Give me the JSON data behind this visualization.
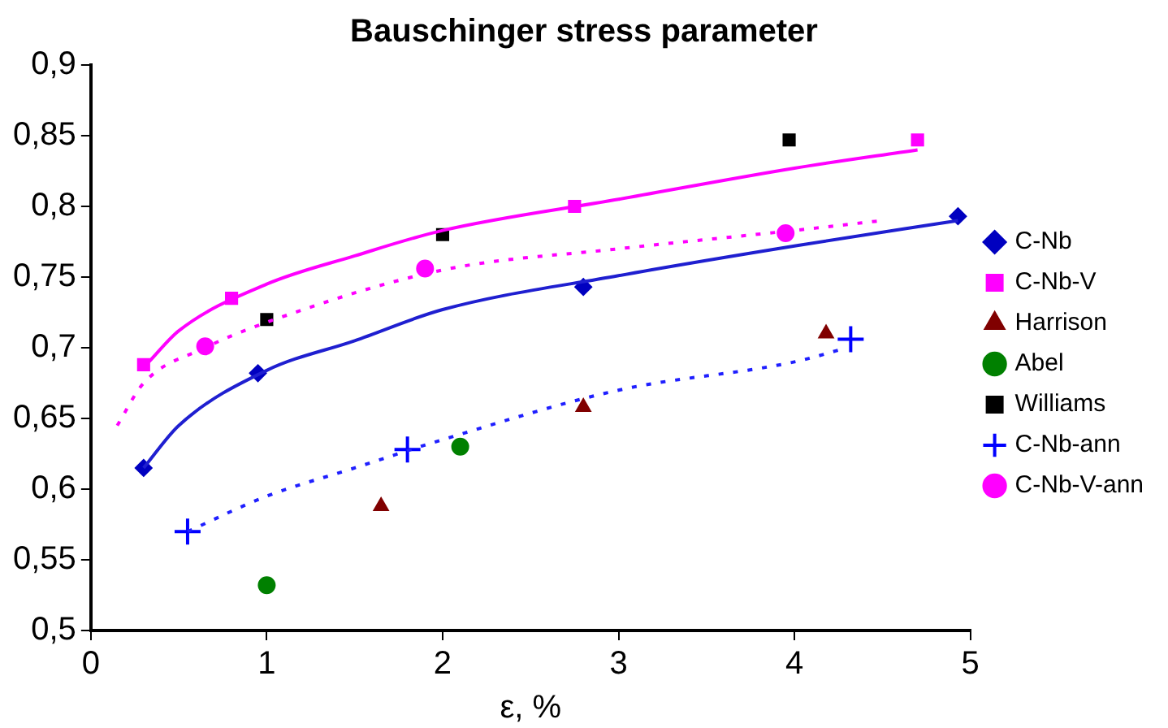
{
  "chart_data": {
    "type": "scatter",
    "title": "Bauschinger stress parameter",
    "xlabel": "ε, %",
    "xlim": [
      0,
      5
    ],
    "xticks": [
      0,
      1,
      2,
      3,
      4,
      5
    ],
    "ylim": [
      0.5,
      0.9
    ],
    "yticks": [
      {
        "value": 0.5,
        "label": "0,5"
      },
      {
        "value": 0.55,
        "label": "0,55"
      },
      {
        "value": 0.6,
        "label": "0,6"
      },
      {
        "value": 0.65,
        "label": "0,65"
      },
      {
        "value": 0.7,
        "label": "0,7"
      },
      {
        "value": 0.75,
        "label": "0,75"
      },
      {
        "value": 0.8,
        "label": "0,8"
      },
      {
        "value": 0.85,
        "label": "0,85"
      },
      {
        "value": 0.9,
        "label": "0,9"
      }
    ],
    "grid": false,
    "legend": "right",
    "series": [
      {
        "type": "line",
        "color": "#1f1fd0",
        "marker": "none",
        "line_style": "solid",
        "x": [
          0.3,
          0.5,
          1,
          1.5,
          2,
          3,
          4,
          4.93
        ],
        "values": [
          0.615,
          0.645,
          0.684,
          0.705,
          0.727,
          0.751,
          0.772,
          0.79
        ]
      },
      {
        "type": "line",
        "color": "#ff00ff",
        "marker": "none",
        "line_style": "solid",
        "x": [
          0.33,
          0.5,
          1,
          1.5,
          2,
          3,
          4,
          4.7
        ],
        "values": [
          0.69,
          0.712,
          0.745,
          0.765,
          0.783,
          0.805,
          0.827,
          0.84
        ]
      },
      {
        "type": "line",
        "color": "#ff00ff",
        "marker": "none",
        "line_style": "dotted",
        "x": [
          0.15,
          0.3,
          0.65,
          1,
          2,
          3,
          4,
          4.5
        ],
        "values": [
          0.645,
          0.675,
          0.7,
          0.718,
          0.755,
          0.77,
          0.783,
          0.79
        ]
      },
      {
        "type": "line",
        "color": "#1f1fff",
        "marker": "none",
        "line_style": "dotted",
        "x": [
          0.55,
          1,
          1.5,
          2,
          3,
          4,
          4.3
        ],
        "values": [
          0.57,
          0.595,
          0.615,
          0.635,
          0.67,
          0.69,
          0.7
        ]
      },
      {
        "name": "C-Nb",
        "color": "#0000c0",
        "marker": "diamond",
        "x": [
          0.3,
          0.95,
          2.8,
          4.93
        ],
        "values": [
          0.615,
          0.682,
          0.743,
          0.793
        ]
      },
      {
        "name": "C-Nb-V",
        "color": "#ff00ff",
        "marker": "square",
        "x": [
          0.3,
          0.8,
          2.75,
          4.7
        ],
        "values": [
          0.688,
          0.735,
          0.8,
          0.847
        ]
      },
      {
        "name": "Harrison",
        "color": "#800000",
        "marker": "triangle",
        "x": [
          1.65,
          2.8,
          4.18
        ],
        "values": [
          0.588,
          0.658,
          0.71
        ]
      },
      {
        "name": "Abel",
        "color": "#008000",
        "marker": "circle",
        "x": [
          1,
          2.1
        ],
        "values": [
          0.532,
          0.63
        ]
      },
      {
        "name": "Williams",
        "color": "#000000",
        "marker": "square",
        "x": [
          1,
          2,
          3.97
        ],
        "values": [
          0.72,
          0.78,
          0.847
        ]
      },
      {
        "name": "C-Nb-ann",
        "color": "#0000ff",
        "marker": "cross",
        "x": [
          0.55,
          1.8,
          4.32
        ],
        "values": [
          0.57,
          0.628,
          0.706
        ]
      },
      {
        "name": "C-Nb-V-ann",
        "color": "#ff00ff",
        "marker": "circle",
        "x": [
          0.65,
          1.9,
          3.95
        ],
        "values": [
          0.701,
          0.756,
          0.781
        ]
      }
    ]
  }
}
